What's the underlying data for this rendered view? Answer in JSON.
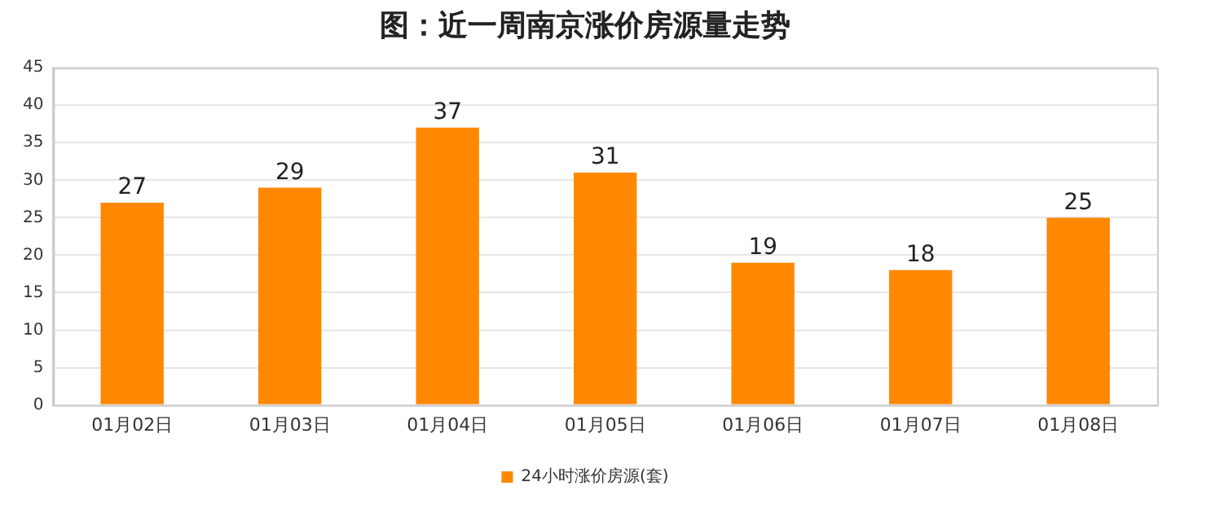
{
  "chart_data": {
    "type": "bar",
    "title": "图：近一周南京涨价房源量走势",
    "categories": [
      "01月02日",
      "01月03日",
      "01月04日",
      "01月05日",
      "01月06日",
      "01月07日",
      "01月08日"
    ],
    "series": [
      {
        "name": "24小时涨价房源(套)",
        "color": "#ff8800",
        "values": [
          27,
          29,
          37,
          31,
          19,
          18,
          25
        ]
      }
    ],
    "ylim": [
      0,
      45
    ],
    "yticks": [
      0,
      5,
      10,
      15,
      20,
      25,
      30,
      35,
      40,
      45
    ],
    "grid": "y",
    "legend": "bottom",
    "data_labels": true
  }
}
